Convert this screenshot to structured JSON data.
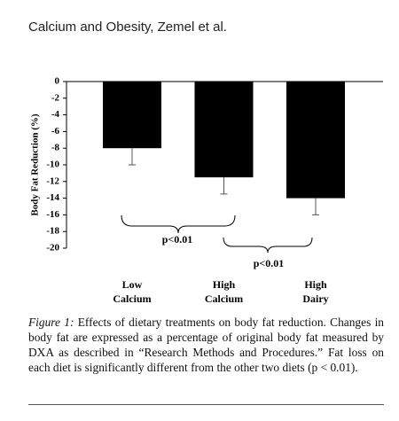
{
  "header": {
    "title": "Calcium and Obesity, Zemel et al."
  },
  "chart_data": {
    "type": "bar",
    "ylabel": "Body Fat Reduction (%)",
    "categories": [
      "Low Calcium",
      "High Calcium",
      "High Dairy"
    ],
    "values": [
      -8,
      -11.5,
      -14
    ],
    "errors": [
      2,
      2,
      2
    ],
    "color": "#000000",
    "ylim": [
      -20,
      0
    ],
    "yticks": [
      0,
      -2,
      -4,
      -6,
      -8,
      -10,
      -12,
      -14,
      -16,
      -18,
      -20
    ],
    "annotations": [
      "p<0.01",
      "p<0.01"
    ]
  },
  "caption": {
    "label": "Figure 1:",
    "text": "Effects of dietary treatments on body fat reduction. Changes in body fat are expressed as a percentage of original body fat measured by DXA as described in “Research Methods and Procedures.” Fat loss on each diet is significantly different from the other two diets (p < 0.01)."
  }
}
